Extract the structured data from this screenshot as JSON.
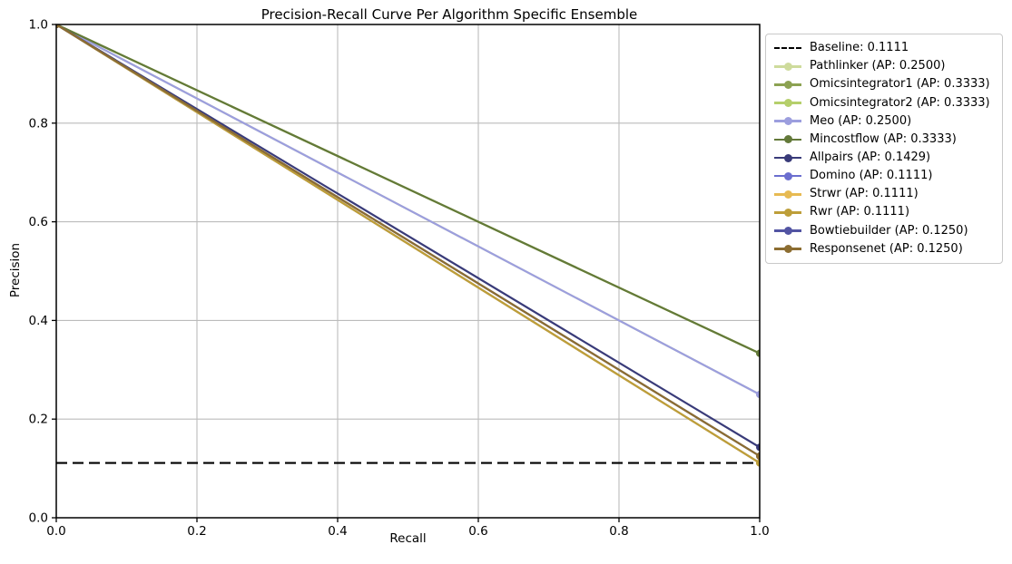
{
  "chart_data": {
    "type": "line",
    "title": "Precision-Recall Curve Per Algorithm Specific Ensemble",
    "xlabel": "Recall",
    "ylabel": "Precision",
    "xlim": [
      0.0,
      1.0
    ],
    "ylim": [
      0.0,
      1.0
    ],
    "xticks": [
      0.0,
      0.2,
      0.4,
      0.6,
      0.8,
      1.0
    ],
    "yticks": [
      0.0,
      0.2,
      0.4,
      0.6,
      0.8,
      1.0
    ],
    "grid": true,
    "grid_color": "#bcbcbc",
    "legend_position": "upper right, outside plot area",
    "legend_border_color": "#c9c9c9",
    "baseline": {
      "label": "Baseline: 0.1111",
      "value": 0.1111,
      "color": "#000000",
      "linestyle": "dashed"
    },
    "series": [
      {
        "name": "Pathlinker",
        "label": "Pathlinker (AP: 0.2500)",
        "ap": 0.25,
        "color": "#cedb9c",
        "x": [
          0.0,
          1.0
        ],
        "y": [
          1.0,
          0.25
        ]
      },
      {
        "name": "Omicsintegrator1",
        "label": "Omicsintegrator1 (AP: 0.3333)",
        "ap": 0.3333,
        "color": "#8ca252",
        "x": [
          0.0,
          1.0
        ],
        "y": [
          1.0,
          0.3333
        ]
      },
      {
        "name": "Omicsintegrator2",
        "label": "Omicsintegrator2 (AP: 0.3333)",
        "ap": 0.3333,
        "color": "#b5cf6b",
        "x": [
          0.0,
          1.0
        ],
        "y": [
          1.0,
          0.3333
        ]
      },
      {
        "name": "Meo",
        "label": "Meo (AP: 0.2500)",
        "ap": 0.25,
        "color": "#9c9ede",
        "x": [
          0.0,
          1.0
        ],
        "y": [
          1.0,
          0.25
        ]
      },
      {
        "name": "Mincostflow",
        "label": "Mincostflow (AP: 0.3333)",
        "ap": 0.3333,
        "color": "#637939",
        "x": [
          0.0,
          1.0
        ],
        "y": [
          1.0,
          0.3333
        ]
      },
      {
        "name": "Allpairs",
        "label": "Allpairs (AP: 0.1429)",
        "ap": 0.1429,
        "color": "#393b79",
        "x": [
          0.0,
          1.0
        ],
        "y": [
          1.0,
          0.1429
        ]
      },
      {
        "name": "Domino",
        "label": "Domino (AP: 0.1111)",
        "ap": 0.1111,
        "color": "#6b6ecf",
        "x": [
          0.0,
          1.0
        ],
        "y": [
          1.0,
          0.1111
        ]
      },
      {
        "name": "Strwr",
        "label": "Strwr (AP: 0.1111)",
        "ap": 0.1111,
        "color": "#e7ba52",
        "x": [
          0.0,
          1.0
        ],
        "y": [
          1.0,
          0.1111
        ]
      },
      {
        "name": "Rwr",
        "label": "Rwr (AP: 0.1111)",
        "ap": 0.1111,
        "color": "#bd9e39",
        "x": [
          0.0,
          1.0
        ],
        "y": [
          1.0,
          0.1111
        ]
      },
      {
        "name": "Bowtiebuilder",
        "label": "Bowtiebuilder (AP: 0.1250)",
        "ap": 0.125,
        "color": "#5254a3",
        "x": [
          0.0,
          1.0
        ],
        "y": [
          1.0,
          0.125
        ]
      },
      {
        "name": "Responsenet",
        "label": "Responsenet (AP: 0.1250)",
        "ap": 0.125,
        "color": "#8c6d31",
        "x": [
          0.0,
          1.0
        ],
        "y": [
          1.0,
          0.125
        ]
      }
    ]
  }
}
